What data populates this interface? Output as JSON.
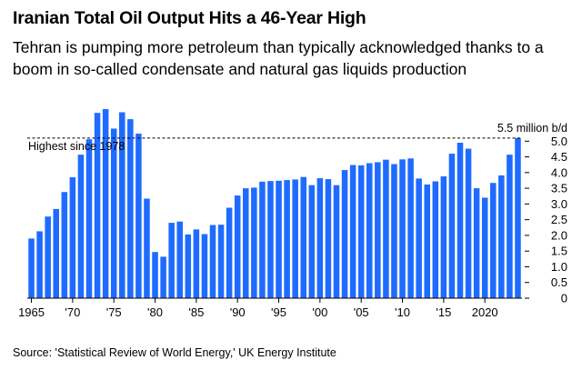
{
  "header": {
    "title": "Iranian Total Oil Output Hits a 46-Year High",
    "subtitle": "Tehran is pumping more petroleum than typically acknowledged thanks to a boom in so-called condensate and natural gas liquids production"
  },
  "footer": {
    "source": "Source: 'Statistical Review of World Energy,' UK Energy Institute"
  },
  "colors": {
    "bar": "#1f6bff",
    "annotation_line": "#000000",
    "baseline": "#000000"
  },
  "chart_data": {
    "type": "bar",
    "x": [
      1965,
      1966,
      1967,
      1968,
      1969,
      1970,
      1971,
      1972,
      1973,
      1974,
      1975,
      1976,
      1977,
      1978,
      1979,
      1980,
      1981,
      1982,
      1983,
      1984,
      1985,
      1986,
      1987,
      1988,
      1989,
      1990,
      1991,
      1992,
      1993,
      1994,
      1995,
      1996,
      1997,
      1998,
      1999,
      2000,
      2001,
      2002,
      2003,
      2004,
      2005,
      2006,
      2007,
      2008,
      2009,
      2010,
      2011,
      2012,
      2013,
      2014,
      2015,
      2016,
      2017,
      2018,
      2019,
      2020,
      2021,
      2022,
      2023,
      2024
    ],
    "values": [
      1.9,
      2.13,
      2.6,
      2.84,
      3.38,
      3.85,
      4.57,
      5.06,
      5.9,
      6.02,
      5.4,
      5.92,
      5.7,
      5.24,
      3.17,
      1.47,
      1.32,
      2.4,
      2.44,
      2.03,
      2.19,
      2.04,
      2.33,
      2.34,
      2.88,
      3.27,
      3.5,
      3.52,
      3.71,
      3.73,
      3.74,
      3.76,
      3.78,
      3.86,
      3.6,
      3.82,
      3.79,
      3.6,
      4.08,
      4.24,
      4.23,
      4.3,
      4.33,
      4.41,
      4.27,
      4.42,
      4.45,
      3.81,
      3.62,
      3.72,
      3.88,
      4.6,
      4.95,
      4.76,
      3.5,
      3.2,
      3.67,
      3.91,
      4.57,
      5.1
    ],
    "y_ticks": [
      0,
      0.5,
      1.0,
      1.5,
      2.0,
      2.5,
      3.0,
      3.5,
      4.0,
      4.5,
      5.0
    ],
    "y_tick_labels": [
      "0",
      "0.5",
      "1.0",
      "1.5",
      "2.0",
      "2.5",
      "3.0",
      "3.5",
      "4.0",
      "4.5",
      "5.0"
    ],
    "y_unit_label": "5.5 million b/d",
    "ylim": [
      0,
      6.05
    ],
    "x_ticks": [
      1965,
      1970,
      1975,
      1980,
      1985,
      1990,
      1995,
      2000,
      2005,
      2010,
      2015,
      2020
    ],
    "x_tick_labels": [
      "1965",
      "'70",
      "'75",
      "'80",
      "'85",
      "'90",
      "'95",
      "'00",
      "'05",
      "'10",
      "'15",
      "2020"
    ],
    "reference_line": {
      "value": 5.1,
      "label": "Highest since 1978"
    },
    "grid": false,
    "legend": "none"
  }
}
